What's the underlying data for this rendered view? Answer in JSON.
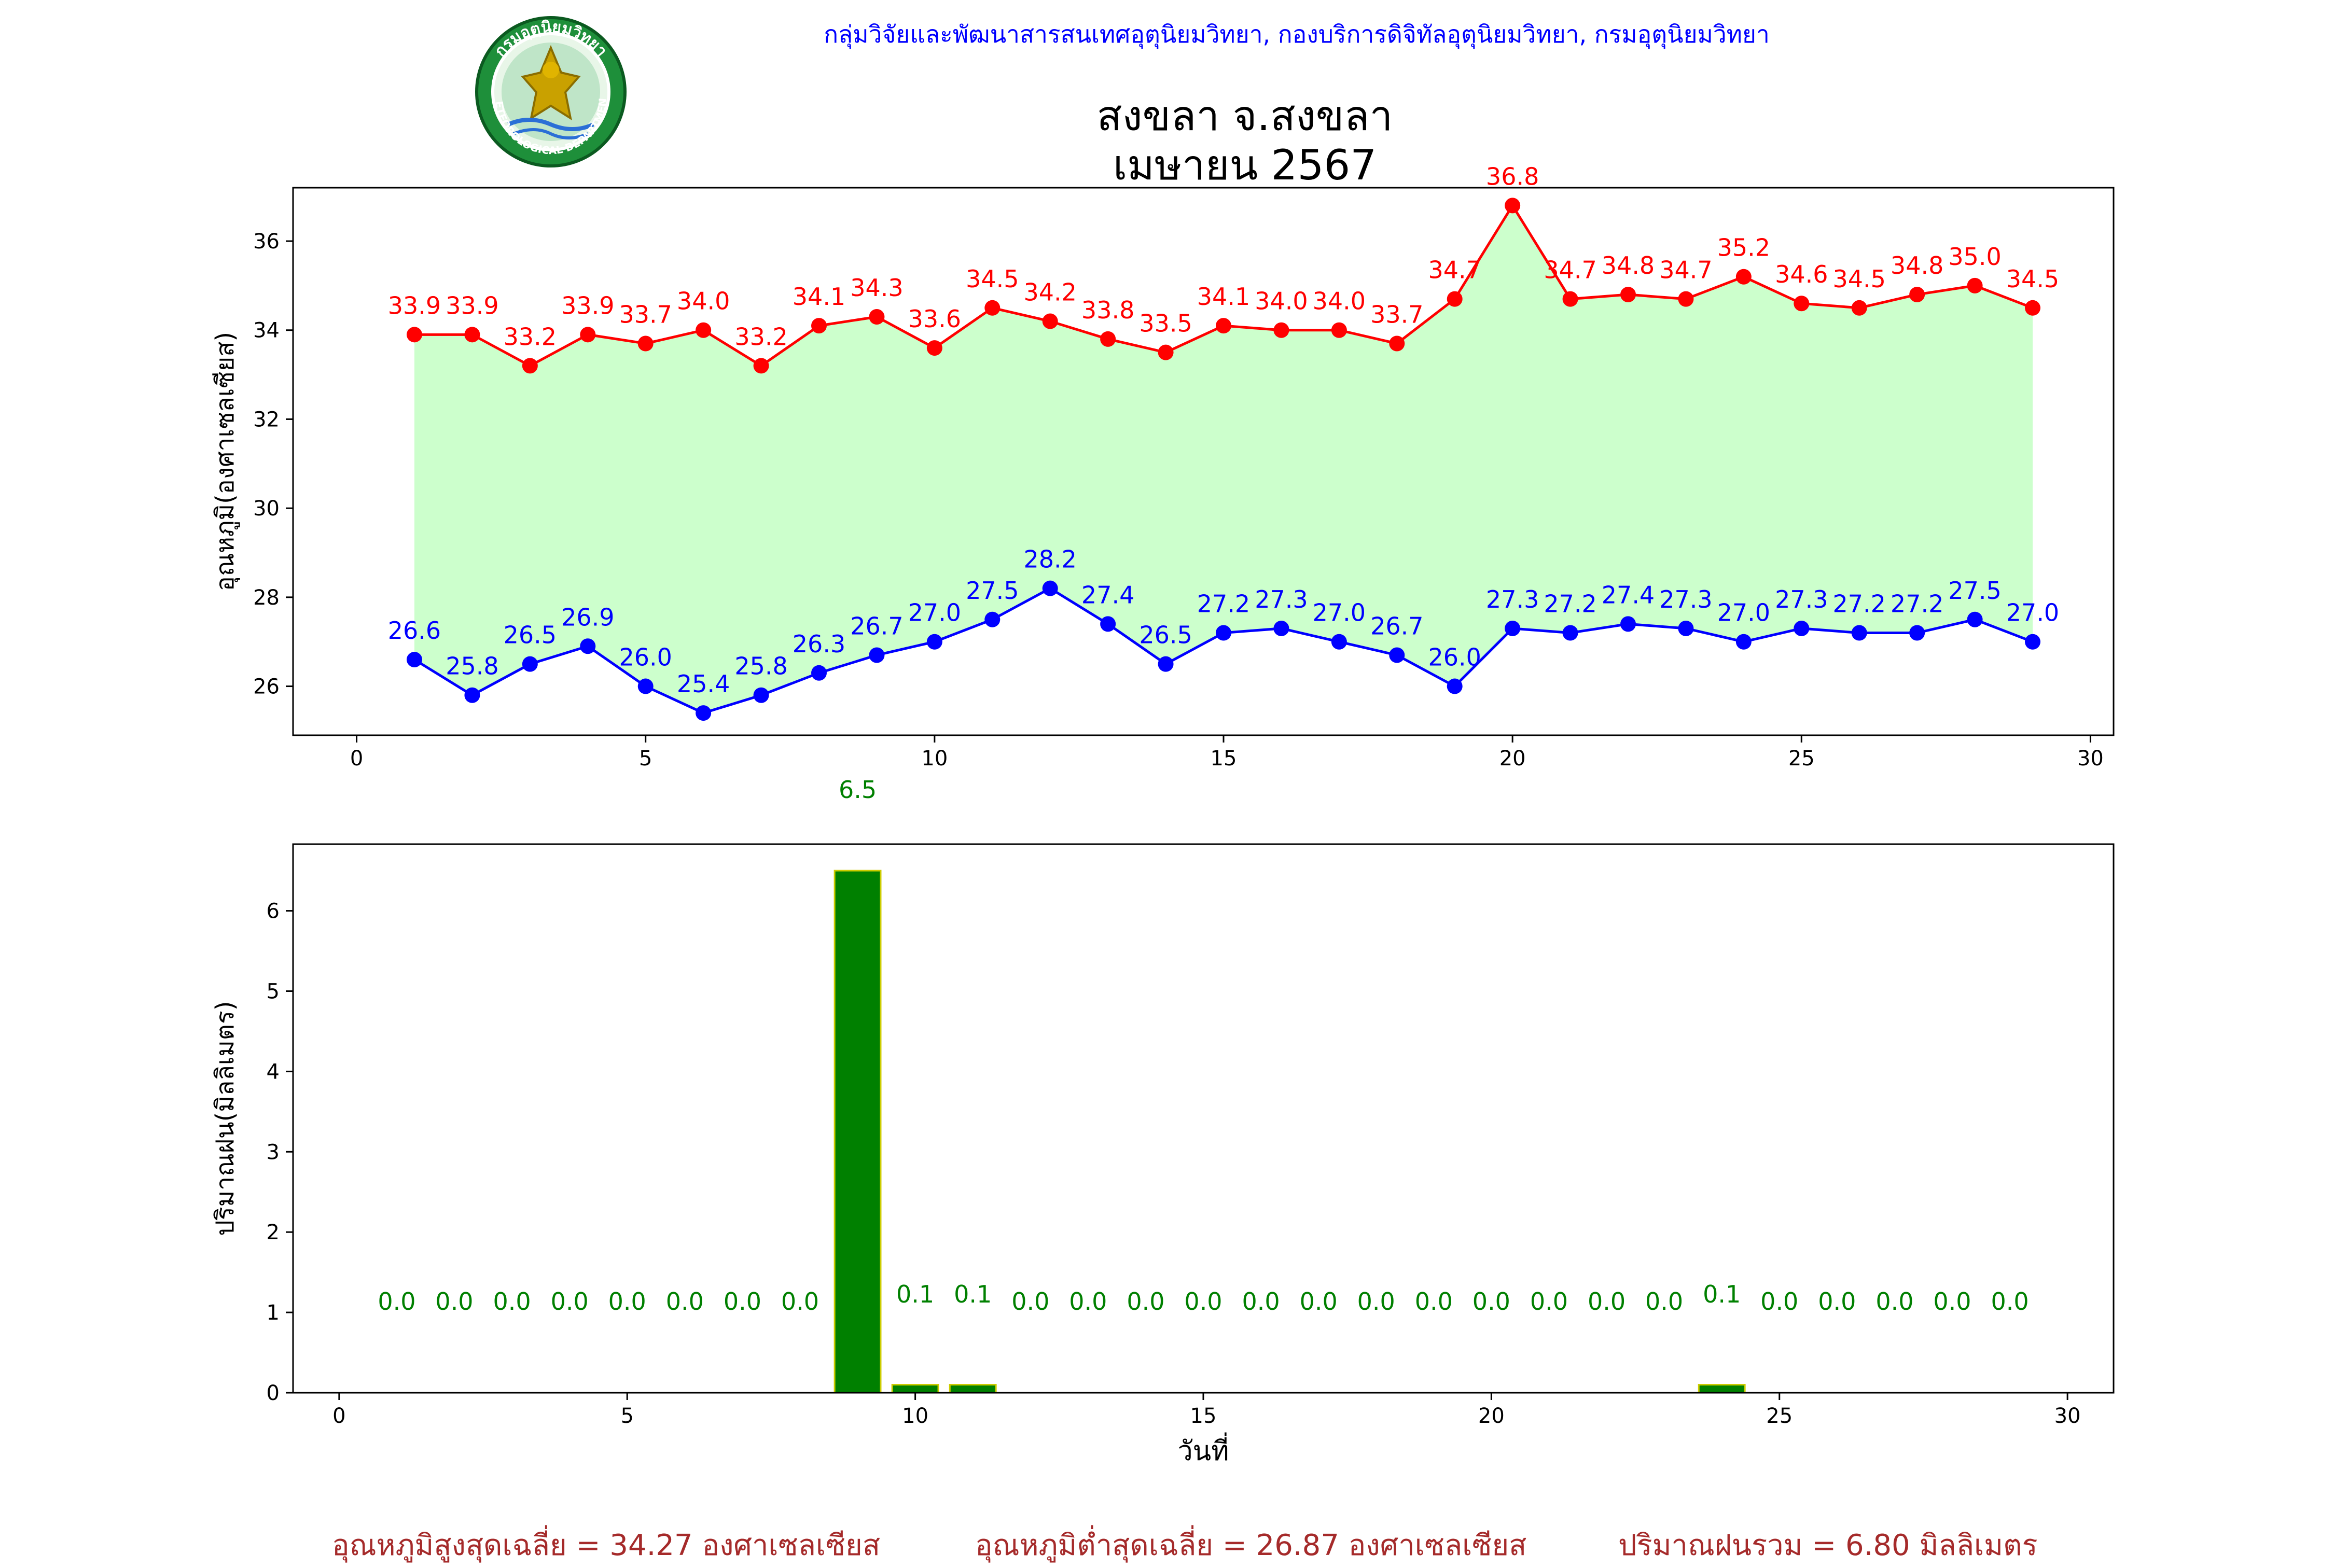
{
  "header": {
    "organization": "กลุ่มวิจัยและพัฒนาสารสนเทศอุตุนิยมวิทยา, กองบริการดิจิทัลอุตุนิยมวิทยา, กรมอุตุนิยมวิทยา",
    "station": "สงขลา จ.สงขลา",
    "period": "เมษายน 2567",
    "logo_text_top": "กรมอุตุนิยมวิทยา",
    "logo_text_bottom": "METEOROLOGICAL DEPARTMENT"
  },
  "colors": {
    "max_line": "#ff0000",
    "min_line": "#0000ff",
    "fill_band": "#ccffcc",
    "bar_fill": "#008000",
    "bar_edge": "#cccc00",
    "rain_label": "#008000",
    "footer_text": "#a52a2a",
    "header_text": "#0000ff"
  },
  "chart_data": [
    {
      "type": "line",
      "ylabel": "อุณหภูมิ(องศาเซลเซียส)",
      "xlabel": "",
      "xlim": [
        -1.1,
        30.4
      ],
      "ylim": [
        24.9,
        37.2
      ],
      "xticks": [
        0,
        5,
        10,
        15,
        20,
        25,
        30
      ],
      "yticks": [
        26,
        28,
        30,
        32,
        34,
        36
      ],
      "grid": false,
      "fill_between": true,
      "x": [
        1,
        2,
        3,
        4,
        5,
        6,
        7,
        8,
        9,
        10,
        11,
        12,
        13,
        14,
        15,
        16,
        17,
        18,
        19,
        20,
        21,
        22,
        23,
        24,
        25,
        26,
        27,
        28,
        29
      ],
      "series": [
        {
          "values": [
            33.9,
            33.9,
            33.2,
            33.9,
            33.7,
            34.0,
            33.2,
            34.1,
            34.3,
            33.6,
            34.5,
            34.2,
            33.8,
            33.5,
            34.1,
            34.0,
            34.0,
            33.7,
            34.7,
            36.8,
            34.7,
            34.8,
            34.7,
            35.2,
            34.6,
            34.5,
            34.8,
            35.0,
            34.5
          ]
        },
        {
          "values": [
            26.6,
            25.8,
            26.5,
            26.9,
            26.0,
            25.4,
            25.8,
            26.3,
            26.7,
            27.0,
            27.5,
            28.2,
            27.4,
            26.5,
            27.2,
            27.3,
            27.0,
            26.7,
            26.0,
            27.3,
            27.2,
            27.4,
            27.3,
            27.0,
            27.3,
            27.2,
            27.2,
            27.5,
            27.0
          ]
        }
      ]
    },
    {
      "type": "bar",
      "ylabel": "ปริมาณฝน(มิลลิเมตร)",
      "xlabel": "วันที่",
      "xlim": [
        -0.8,
        30.8
      ],
      "ylim": [
        0,
        6.83
      ],
      "xticks": [
        0,
        5,
        10,
        15,
        20,
        25,
        30
      ],
      "yticks": [
        0,
        1,
        2,
        3,
        4,
        5,
        6
      ],
      "grid": false,
      "x": [
        1,
        2,
        3,
        4,
        5,
        6,
        7,
        8,
        9,
        10,
        11,
        12,
        13,
        14,
        15,
        16,
        17,
        18,
        19,
        20,
        21,
        22,
        23,
        24,
        25,
        26,
        27,
        28,
        29
      ],
      "values": [
        0.0,
        0.0,
        0.0,
        0.0,
        0.0,
        0.0,
        0.0,
        0.0,
        6.5,
        0.1,
        0.1,
        0.0,
        0.0,
        0.0,
        0.0,
        0.0,
        0.0,
        0.0,
        0.0,
        0.0,
        0.0,
        0.0,
        0.0,
        0.1,
        0.0,
        0.0,
        0.0,
        0.0,
        0.0
      ]
    }
  ],
  "footer": {
    "avg_max": "อุณหภูมิสูงสุดเฉลี่ย = 34.27 องศาเซลเซียส",
    "avg_min": "อุณหภูมิต่ำสุดเฉลี่ย = 26.87 องศาเซลเซียส",
    "total_rain": "ปริมาณฝนรวม = 6.80 มิลลิเมตร"
  }
}
